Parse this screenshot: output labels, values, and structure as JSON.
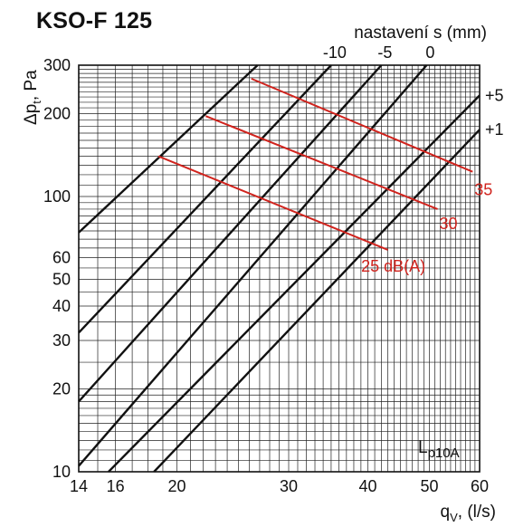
{
  "chart_data": {
    "type": "line",
    "title": "KSO-F 125",
    "top_axis_label": "nastavení s (mm)",
    "top_ticks": [
      "-10",
      "-5",
      "0"
    ],
    "right_line_labels": [
      "+5",
      "+1"
    ],
    "xlabel": {
      "main": "q",
      "sub": "V",
      "unit": ", (l/s)"
    },
    "ylabel": {
      "prefix": "Δp",
      "sub": "t",
      "unit": ", Pa"
    },
    "x_scale": "log",
    "y_scale": "log",
    "xlim": [
      14,
      60
    ],
    "ylim": [
      10,
      300
    ],
    "x_ticks": [
      14,
      16,
      20,
      30,
      40,
      50,
      60
    ],
    "y_ticks": [
      10,
      20,
      30,
      40,
      50,
      60,
      100,
      200,
      300
    ],
    "noise_label": {
      "main": "L",
      "sub": "p10A"
    },
    "grid": true,
    "setting_lines": [
      {
        "x": [
          14,
          26.8
        ],
        "y": [
          74,
          300
        ]
      },
      {
        "x": [
          14,
          35
        ],
        "y": [
          32,
          300
        ]
      },
      {
        "x": [
          14,
          42
        ],
        "y": [
          18,
          300
        ]
      },
      {
        "x": [
          14,
          49.5
        ],
        "y": [
          10.5,
          300
        ]
      },
      {
        "x": [
          15.6,
          60
        ],
        "y": [
          10,
          233
        ]
      },
      {
        "x": [
          18.4,
          60
        ],
        "y": [
          10,
          175
        ]
      }
    ],
    "noise_lines": [
      {
        "label": "35",
        "x": [
          26.2,
          58.5
        ],
        "y": [
          268,
          123
        ]
      },
      {
        "label": "30",
        "x": [
          22.2,
          51.5
        ],
        "y": [
          196,
          90
        ]
      },
      {
        "label": "25 dB(A)",
        "x": [
          18.7,
          43
        ],
        "y": [
          140,
          64
        ]
      }
    ]
  }
}
